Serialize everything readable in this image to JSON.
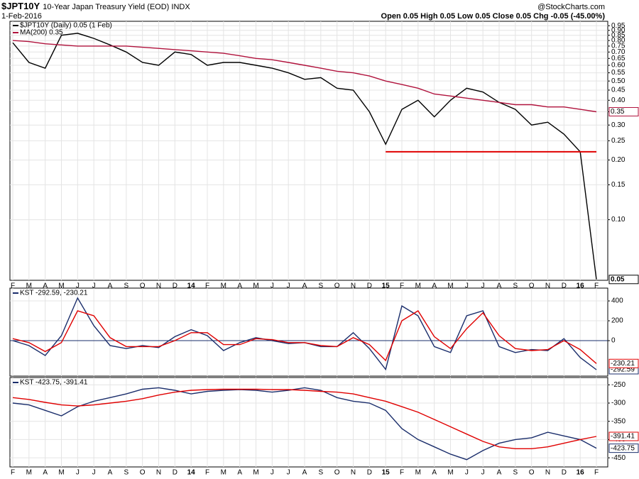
{
  "header": {
    "symbol": "$JPT10Y",
    "name": "10-Year Japan Treasury Yield (EOD) INDX",
    "date": "1-Feb-2016",
    "quote": "Open 0.05 High 0.05 Low 0.05 Close 0.05 Chg -0.05 (-45.00%)",
    "brand": "@StockCharts.com"
  },
  "chart_data": [
    {
      "type": "line",
      "log_scale": true,
      "grid": true,
      "categories": [
        "F",
        "M",
        "A",
        "M",
        "J",
        "J",
        "A",
        "S",
        "O",
        "N",
        "D",
        "14",
        "F",
        "M",
        "A",
        "M",
        "J",
        "J",
        "A",
        "S",
        "O",
        "N",
        "D",
        "15",
        "F",
        "M",
        "A",
        "M",
        "J",
        "J",
        "A",
        "S",
        "O",
        "N",
        "D",
        "16",
        "F"
      ],
      "ylim": [
        0.0495,
        1.0
      ],
      "yticks": [
        {
          "value": 0.1,
          "label": "0.10"
        },
        0.15,
        {
          "value": 0.2,
          "label": "0.20"
        },
        0.25,
        {
          "value": 0.3,
          "label": "0.30"
        },
        0.35,
        {
          "value": 0.4,
          "label": "0.40"
        },
        0.45,
        {
          "value": 0.5,
          "label": "0.50"
        },
        0.55,
        {
          "value": 0.6,
          "label": "0.60"
        },
        0.65,
        {
          "value": 0.7,
          "label": "0.70"
        },
        0.75,
        {
          "value": 0.8,
          "label": "0.80"
        },
        0.85,
        {
          "value": 0.9,
          "label": "0.90"
        },
        0.95
      ],
      "series": [
        {
          "name": "$JPT10Y (Daily) 0.05 (1 Feb)",
          "color": "#000000",
          "values": [
            0.78,
            0.62,
            0.58,
            0.85,
            0.87,
            0.82,
            0.76,
            0.7,
            0.62,
            0.6,
            0.7,
            0.68,
            0.6,
            0.62,
            0.62,
            0.6,
            0.58,
            0.55,
            0.51,
            0.52,
            0.46,
            0.45,
            0.35,
            0.24,
            0.36,
            0.4,
            0.33,
            0.4,
            0.46,
            0.44,
            0.39,
            0.36,
            0.3,
            0.31,
            0.27,
            0.22,
            0.05
          ]
        },
        {
          "name": "MA(200) 0.35",
          "color": "#b0123c",
          "values": [
            0.8,
            0.79,
            0.77,
            0.76,
            0.75,
            0.75,
            0.75,
            0.75,
            0.74,
            0.73,
            0.72,
            0.71,
            0.7,
            0.69,
            0.67,
            0.65,
            0.64,
            0.62,
            0.6,
            0.58,
            0.56,
            0.55,
            0.53,
            0.5,
            0.48,
            0.46,
            0.43,
            0.42,
            0.41,
            0.4,
            0.39,
            0.38,
            0.38,
            0.37,
            0.37,
            0.36,
            0.35
          ]
        },
        {
          "color": "#e00000",
          "values": [
            null,
            null,
            null,
            null,
            null,
            null,
            null,
            null,
            null,
            null,
            null,
            null,
            null,
            null,
            null,
            null,
            null,
            null,
            null,
            null,
            null,
            null,
            null,
            0.22,
            0.22,
            0.22,
            0.22,
            0.22,
            0.22,
            0.22,
            0.22,
            0.22,
            0.22,
            0.22,
            0.22,
            0.22,
            0.22
          ]
        }
      ]
    },
    {
      "type": "line",
      "grid": true,
      "legend": "KST -292.59, -230.21",
      "ylim": [
        -357,
        529
      ],
      "yticks": [
        400,
        200,
        0
      ],
      "series": [
        {
          "color": "#1a2d6b",
          "values": [
            0,
            -50,
            -150,
            50,
            430,
            150,
            -50,
            -80,
            -50,
            -70,
            40,
            110,
            50,
            -100,
            -20,
            30,
            0,
            -30,
            -20,
            -60,
            -60,
            80,
            -80,
            -290,
            350,
            250,
            -60,
            -120,
            250,
            300,
            -60,
            -120,
            -90,
            -100,
            20,
            -170,
            -292.59
          ]
        },
        {
          "color": "#e00000",
          "values": [
            20,
            -20,
            -110,
            -20,
            300,
            250,
            30,
            -60,
            -60,
            -60,
            0,
            80,
            80,
            -40,
            -40,
            20,
            10,
            -20,
            -20,
            -50,
            -60,
            30,
            -40,
            -200,
            200,
            300,
            40,
            -80,
            120,
            280,
            50,
            -80,
            -100,
            -90,
            0,
            -90,
            -230.21
          ]
        }
      ]
    },
    {
      "type": "line",
      "grid": true,
      "legend": "KST -423.75, -391.41",
      "categories": [
        "F",
        "M",
        "A",
        "M",
        "J",
        "J",
        "A",
        "S",
        "O",
        "N",
        "D",
        "14",
        "F",
        "M",
        "A",
        "M",
        "J",
        "J",
        "A",
        "S",
        "O",
        "N",
        "D",
        "15",
        "F",
        "M",
        "A",
        "M",
        "J",
        "J",
        "A",
        "S",
        "O",
        "N",
        "D",
        "16",
        "F"
      ],
      "ylim": [
        -475,
        -230
      ],
      "yticks": [
        -250,
        -300,
        -350,
        -400,
        -450
      ],
      "series": [
        {
          "color": "#1a2d6b",
          "values": [
            -300,
            -305,
            -320,
            -335,
            -310,
            -295,
            -285,
            -275,
            -262,
            -258,
            -265,
            -275,
            -268,
            -265,
            -263,
            -265,
            -270,
            -265,
            -258,
            -265,
            -285,
            -295,
            -300,
            -320,
            -370,
            -400,
            -420,
            -440,
            -455,
            -430,
            -410,
            -400,
            -395,
            -380,
            -390,
            -400,
            -423.75
          ]
        },
        {
          "color": "#e00000",
          "values": [
            -285,
            -290,
            -298,
            -305,
            -308,
            -305,
            -300,
            -295,
            -288,
            -278,
            -270,
            -265,
            -263,
            -262,
            -262,
            -262,
            -263,
            -263,
            -265,
            -268,
            -270,
            -275,
            -285,
            -295,
            -310,
            -325,
            -345,
            -365,
            -385,
            -405,
            -420,
            -425,
            -425,
            -420,
            -410,
            -400,
            -391.41
          ]
        }
      ]
    }
  ]
}
